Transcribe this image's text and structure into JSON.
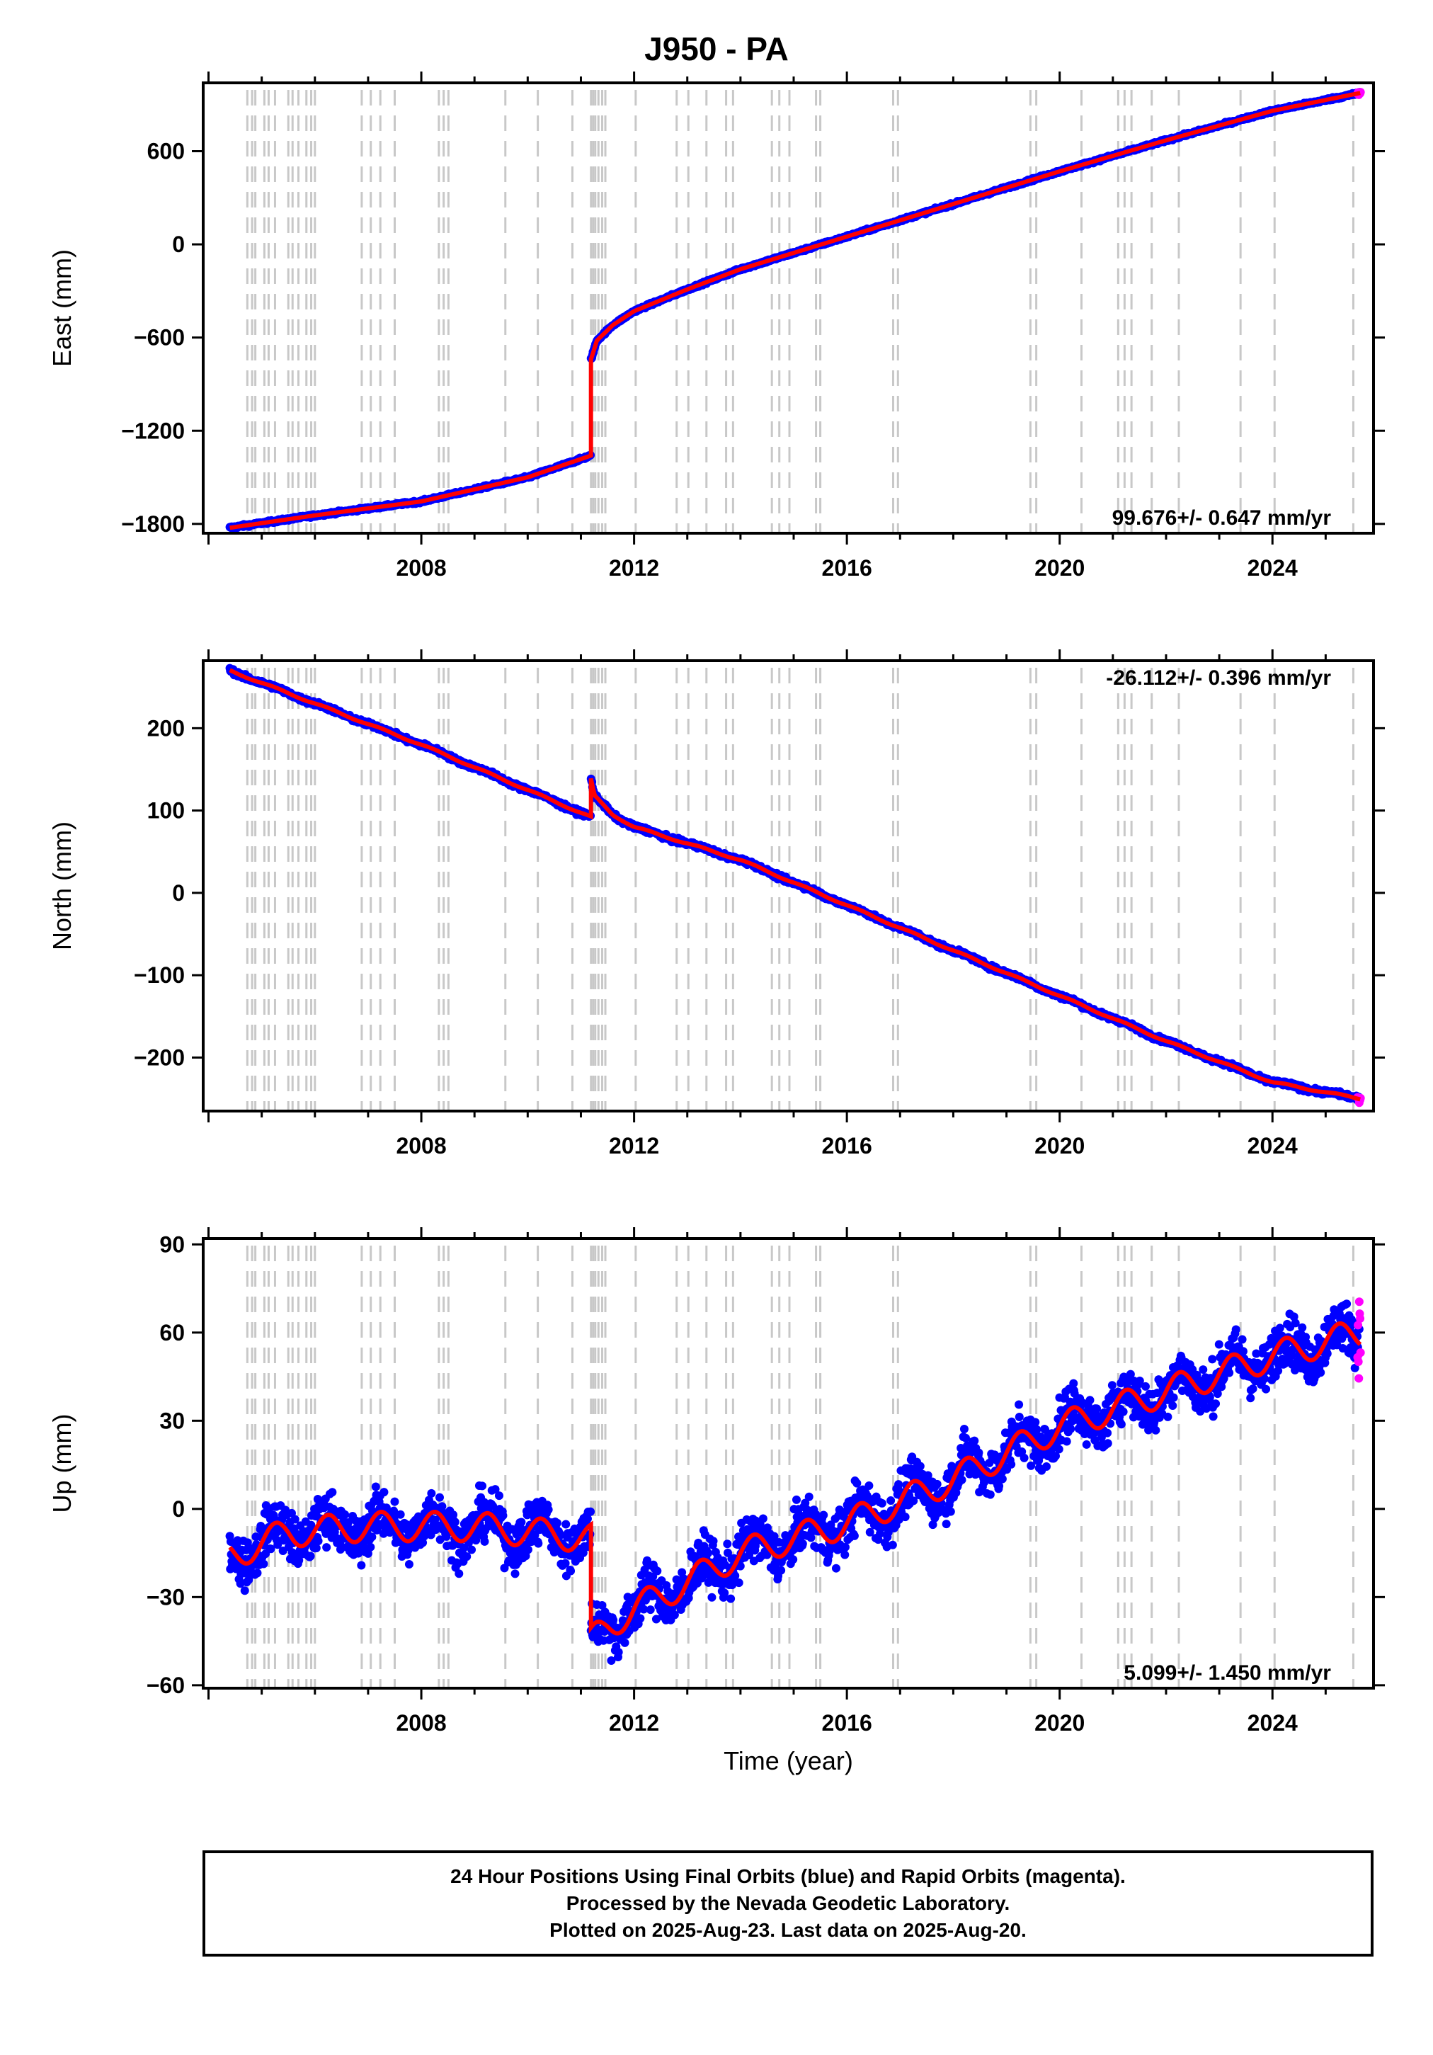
{
  "title": "J950 - PA",
  "colors": {
    "final": "#0000ff",
    "rapid": "#ff00ff",
    "model": "#ff0000",
    "steps": "#c8c8c8"
  },
  "footer": {
    "line1": "24 Hour Positions Using Final Orbits (blue) and Rapid Orbits (magenta).",
    "line2": "Processed by the Nevada Geodetic Laboratory.",
    "line3": "Plotted on 2025-Aug-23. Last data on 2025-Aug-20."
  },
  "chart_data": [
    {
      "type": "scatter",
      "ylabel": "East (mm)",
      "xlabel": "",
      "xlim": [
        2003.9,
        2025.9
      ],
      "ylim": [
        -1860,
        1040
      ],
      "xticks": [
        "2008",
        "2012",
        "2016",
        "2020",
        "2024"
      ],
      "yticks": [
        "-1800",
        "-1200",
        "-600",
        "0",
        "600"
      ],
      "rate": "99.676+/- 0.647 mm/yr",
      "segments": [
        {
          "x": [
            2004.4,
            2006.0,
            2008.0,
            2010.0,
            2011.19
          ],
          "y": [
            -1825,
            -1745,
            -1655,
            -1500,
            -1360
          ]
        },
        {
          "x": [
            2011.19,
            2011.3,
            2011.6,
            2012.0,
            2013.0,
            2014.0,
            2016.0,
            2018.0,
            2020.0,
            2022.0,
            2024.0,
            2025.65
          ],
          "y": [
            -740,
            -620,
            -520,
            -430,
            -290,
            -160,
            50,
            260,
            470,
            670,
            860,
            975
          ]
        }
      ],
      "scatter_noise": 6,
      "seasonal_amp": 0
    },
    {
      "type": "scatter",
      "ylabel": "North (mm)",
      "xlabel": "",
      "xlim": [
        2003.9,
        2025.9
      ],
      "ylim": [
        -265,
        282
      ],
      "xticks": [
        "2008",
        "2012",
        "2016",
        "2020",
        "2024"
      ],
      "yticks": [
        "-200",
        "-100",
        "0",
        "100",
        "200"
      ],
      "rate": "-26.112+/- 0.396 mm/yr",
      "segments": [
        {
          "x": [
            2004.4,
            2006.0,
            2008.0,
            2010.0,
            2011.19
          ],
          "y": [
            270,
            230,
            180,
            125,
            92
          ]
        },
        {
          "x": [
            2011.19,
            2011.25,
            2011.6,
            2012.0,
            2014.0,
            2016.0,
            2018.0,
            2020.0,
            2022.0,
            2024.0,
            2025.65
          ],
          "y": [
            138,
            118,
            95,
            80,
            40,
            -15,
            -70,
            -125,
            -180,
            -230,
            -250
          ]
        }
      ],
      "scatter_noise": 2,
      "seasonal_amp": 1
    },
    {
      "type": "scatter",
      "ylabel": "Up (mm)",
      "xlabel": "Time (year)",
      "xlim": [
        2003.9,
        2025.9
      ],
      "ylim": [
        -61,
        92
      ],
      "xticks": [
        "2008",
        "2012",
        "2016",
        "2020",
        "2024"
      ],
      "yticks": [
        "-60",
        "-30",
        "0",
        "30",
        "60",
        "90"
      ],
      "rate": "5.099+/- 1.450 mm/yr",
      "segments": [
        {
          "x": [
            2004.4,
            2005.5,
            2007.0,
            2009.0,
            2011.19
          ],
          "y": [
            -16,
            -8,
            -6,
            -6,
            -10
          ]
        },
        {
          "x": [
            2011.19,
            2011.5,
            2012.0,
            2013.0,
            2014.0,
            2016.0,
            2018.0,
            2020.0,
            2022.0,
            2024.0,
            2025.65
          ],
          "y": [
            -45,
            -40,
            -34,
            -25,
            -15,
            -5,
            10,
            28,
            40,
            52,
            60
          ]
        }
      ],
      "scatter_noise": 6,
      "seasonal_amp": 5
    }
  ],
  "equipment_steps": [
    2004.73,
    2004.82,
    2004.88,
    2005.05,
    2005.13,
    2005.25,
    2005.5,
    2005.58,
    2005.69,
    2005.84,
    2005.93,
    2006.0,
    2006.88,
    2007.05,
    2007.23,
    2007.5,
    2008.33,
    2008.42,
    2008.51,
    2009.58,
    2010.19,
    2010.84,
    2011.19,
    2011.23,
    2011.27,
    2011.33,
    2011.4,
    2011.46,
    2012.03,
    2012.8,
    2013.02,
    2013.36,
    2013.73,
    2013.86,
    2014.59,
    2014.73,
    2014.92,
    2015.42,
    2015.5,
    2016.87,
    2016.96,
    2019.45,
    2019.56,
    2020.41,
    2021.1,
    2021.22,
    2021.35,
    2021.73,
    2022.24,
    2023.4,
    2024.04,
    2025.52
  ]
}
